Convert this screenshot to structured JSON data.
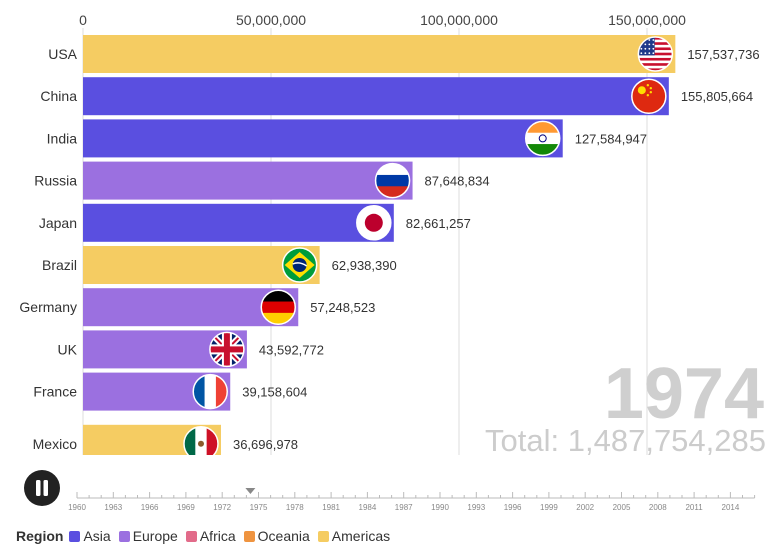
{
  "chart_data": {
    "type": "bar",
    "orientation": "horizontal",
    "title": "",
    "xlim": [
      0,
      160000000
    ],
    "x_ticks": [
      {
        "value": 0,
        "label": "0"
      },
      {
        "value": 50000000,
        "label": "50,000,000"
      },
      {
        "value": 100000000,
        "label": "100,000,000"
      },
      {
        "value": 150000000,
        "label": "150,000,000"
      }
    ],
    "grid": true,
    "bars": [
      {
        "category": "USA",
        "value": 157537736,
        "value_label": "157,537,736",
        "region": "Americas",
        "flag": "usa-flag"
      },
      {
        "category": "China",
        "value": 155805664,
        "value_label": "155,805,664",
        "region": "Asia",
        "flag": "china-flag"
      },
      {
        "category": "India",
        "value": 127584947,
        "value_label": "127,584,947",
        "region": "Asia",
        "flag": "india-flag"
      },
      {
        "category": "Russia",
        "value": 87648834,
        "value_label": "87,648,834",
        "region": "Europe",
        "flag": "russia-flag"
      },
      {
        "category": "Japan",
        "value": 82661257,
        "value_label": "82,661,257",
        "region": "Asia",
        "flag": "japan-flag"
      },
      {
        "category": "Brazil",
        "value": 62938390,
        "value_label": "62,938,390",
        "region": "Americas",
        "flag": "brazil-flag"
      },
      {
        "category": "Germany",
        "value": 57248523,
        "value_label": "57,248,523",
        "region": "Europe",
        "flag": "germany-flag"
      },
      {
        "category": "UK",
        "value": 43592772,
        "value_label": "43,592,772",
        "region": "Europe",
        "flag": "uk-flag"
      },
      {
        "category": "France",
        "value": 39158604,
        "value_label": "39,158,604",
        "region": "Europe",
        "flag": "france-flag"
      },
      {
        "category": "Mexico",
        "value": 36696978,
        "value_label": "36,696,978",
        "region": "Americas",
        "flag": "mexico-flag"
      }
    ],
    "year": "1974",
    "total_label": "Total: 1,487,754,285",
    "legend": {
      "title": "Region",
      "placement": "bottom-left",
      "items": [
        {
          "name": "Asia",
          "color": "#5a4fe0"
        },
        {
          "name": "Europe",
          "color": "#9b70e0"
        },
        {
          "name": "Africa",
          "color": "#e26b8a"
        },
        {
          "name": "Oceania",
          "color": "#ef9440"
        },
        {
          "name": "Americas",
          "color": "#f5cc62"
        }
      ]
    }
  },
  "region_colors": {
    "Asia": "#5a4fe0",
    "Europe": "#9b70e0",
    "Africa": "#e26b8a",
    "Oceania": "#ef9440",
    "Americas": "#f5cc62"
  },
  "timeline": {
    "play_button_icon": "pause-icon",
    "current_year": 1974,
    "start_year": 1960,
    "end_year": 2016,
    "labels": [
      "1960",
      "1963",
      "1966",
      "1969",
      "1972",
      "1975",
      "1978",
      "1981",
      "1984",
      "1987",
      "1990",
      "1993",
      "1996",
      "1999",
      "2002",
      "2005",
      "2008",
      "2011",
      "2014"
    ]
  }
}
